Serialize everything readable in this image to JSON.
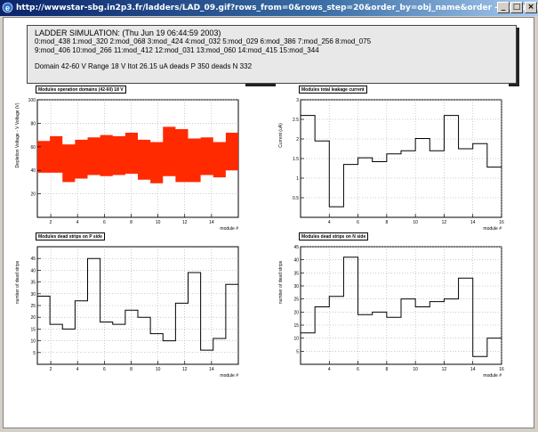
{
  "window": {
    "title": "http://wwwstar-sbg.in2p3.fr/ladders/LAD_09.gif?rows_from=0&rows_step=20&order_by=obj_name&order - Microsoft Internet Explorer",
    "icon": "ie-icon",
    "buttons": [
      "_",
      "□",
      "×"
    ]
  },
  "header": {
    "title": "LADDER SIMULATION: (Thu Jun 19 06:44:59 2003)",
    "modules_row1": "0:mod_438   1:mod_320   2:mod_068   3:mod_424   4:mod_032   5:mod_029   6:mod_386   7:mod_256   8:mod_075",
    "modules_row2": "9:mod_406  10:mod_266  11:mod_412  12:mod_031  13:mod_060  14:mod_415  15:mod_344",
    "summary": "Domain 42-60 V   Range 18 V   Itot 26.15 uA   deads P 350   deads N 332"
  },
  "chart_data": [
    {
      "id": "voltage",
      "type": "area",
      "title": "Modules operation domains (42-60) 18 V",
      "xlabel": "module #",
      "ylabel": "Depletion Voltage - V Voltage (V)",
      "xlim": [
        1,
        16
      ],
      "ylim": [
        0,
        100
      ],
      "yticks": [
        20,
        40,
        60,
        80,
        100
      ],
      "xticks": [
        2,
        4,
        6,
        8,
        10,
        12,
        14
      ],
      "grid": true,
      "color": "#ff2a00",
      "lower": [
        38,
        38,
        30,
        33,
        36,
        35,
        36,
        37,
        32,
        29,
        35,
        30,
        30,
        36,
        34,
        40
      ],
      "upper": [
        65,
        69,
        62,
        66,
        68,
        70,
        69,
        72,
        66,
        64,
        77,
        75,
        67,
        68,
        64,
        72
      ]
    },
    {
      "id": "leakage",
      "type": "line",
      "title": "Modules total leakage current",
      "xlabel": "module #",
      "ylabel": "Current (uA)",
      "xlim": [
        2,
        16
      ],
      "ylim": [
        0,
        3
      ],
      "yticks": [
        0.5,
        1,
        1.5,
        2,
        2.5,
        3
      ],
      "xticks": [
        4,
        6,
        8,
        10,
        12,
        14,
        16
      ],
      "grid": true,
      "values": [
        2.6,
        1.95,
        0.27,
        1.35,
        1.52,
        1.42,
        1.62,
        1.7,
        2.01,
        1.7,
        2.6,
        1.75,
        1.88,
        1.28
      ]
    },
    {
      "id": "deadP",
      "type": "line",
      "title": "Modules dead strips on P side",
      "xlabel": "module #",
      "ylabel": "number of dead strips",
      "xlim": [
        1,
        16
      ],
      "ylim": [
        0,
        50
      ],
      "yticks": [
        5,
        10,
        15,
        20,
        25,
        30,
        35,
        40,
        45
      ],
      "xticks": [
        2,
        4,
        6,
        8,
        10,
        12,
        14
      ],
      "grid": true,
      "values": [
        29,
        17,
        15,
        27,
        45,
        18,
        17,
        23,
        20,
        13,
        10,
        26,
        39,
        6,
        11,
        34
      ]
    },
    {
      "id": "deadN",
      "type": "line",
      "title": "Modules dead strips on N side",
      "xlabel": "module #",
      "ylabel": "number of dead strips",
      "xlim": [
        2,
        16
      ],
      "ylim": [
        0,
        45
      ],
      "yticks": [
        5,
        10,
        15,
        20,
        25,
        30,
        35,
        40,
        45
      ],
      "xticks": [
        4,
        6,
        8,
        10,
        12,
        14,
        16
      ],
      "grid": true,
      "values": [
        12,
        22,
        26,
        41,
        19,
        20,
        18,
        25,
        22,
        24,
        25,
        33,
        3,
        10
      ]
    }
  ]
}
